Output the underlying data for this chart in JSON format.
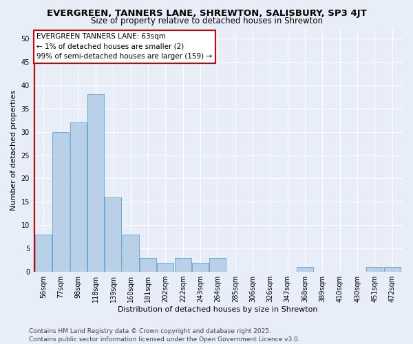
{
  "title_line1": "EVERGREEN, TANNERS LANE, SHREWTON, SALISBURY, SP3 4JT",
  "title_line2": "Size of property relative to detached houses in Shrewton",
  "xlabel": "Distribution of detached houses by size in Shrewton",
  "ylabel": "Number of detached properties",
  "categories": [
    "56sqm",
    "77sqm",
    "98sqm",
    "118sqm",
    "139sqm",
    "160sqm",
    "181sqm",
    "202sqm",
    "222sqm",
    "243sqm",
    "264sqm",
    "285sqm",
    "306sqm",
    "326sqm",
    "347sqm",
    "368sqm",
    "389sqm",
    "410sqm",
    "430sqm",
    "451sqm",
    "472sqm"
  ],
  "values": [
    8,
    30,
    32,
    38,
    16,
    8,
    3,
    2,
    3,
    2,
    3,
    0,
    0,
    0,
    0,
    1,
    0,
    0,
    0,
    1,
    1
  ],
  "bar_color": "#b8d0e8",
  "bar_edge_color": "#6aaad4",
  "background_color": "#e8eef8",
  "grid_color": "#ffffff",
  "annotation_box_edge_color": "#cc0000",
  "annotation_line1": "EVERGREEN TANNERS LANE: 63sqm",
  "annotation_line2": "← 1% of detached houses are smaller (2)",
  "annotation_line3": "99% of semi-detached houses are larger (159) →",
  "ylim": [
    0,
    52
  ],
  "yticks": [
    0,
    5,
    10,
    15,
    20,
    25,
    30,
    35,
    40,
    45,
    50
  ],
  "footer_line1": "Contains HM Land Registry data © Crown copyright and database right 2025.",
  "footer_line2": "Contains public sector information licensed under the Open Government Licence v3.0.",
  "title_fontsize": 9.5,
  "subtitle_fontsize": 8.5,
  "axis_label_fontsize": 8,
  "tick_fontsize": 7,
  "annotation_fontsize": 7.5,
  "footer_fontsize": 6.5
}
